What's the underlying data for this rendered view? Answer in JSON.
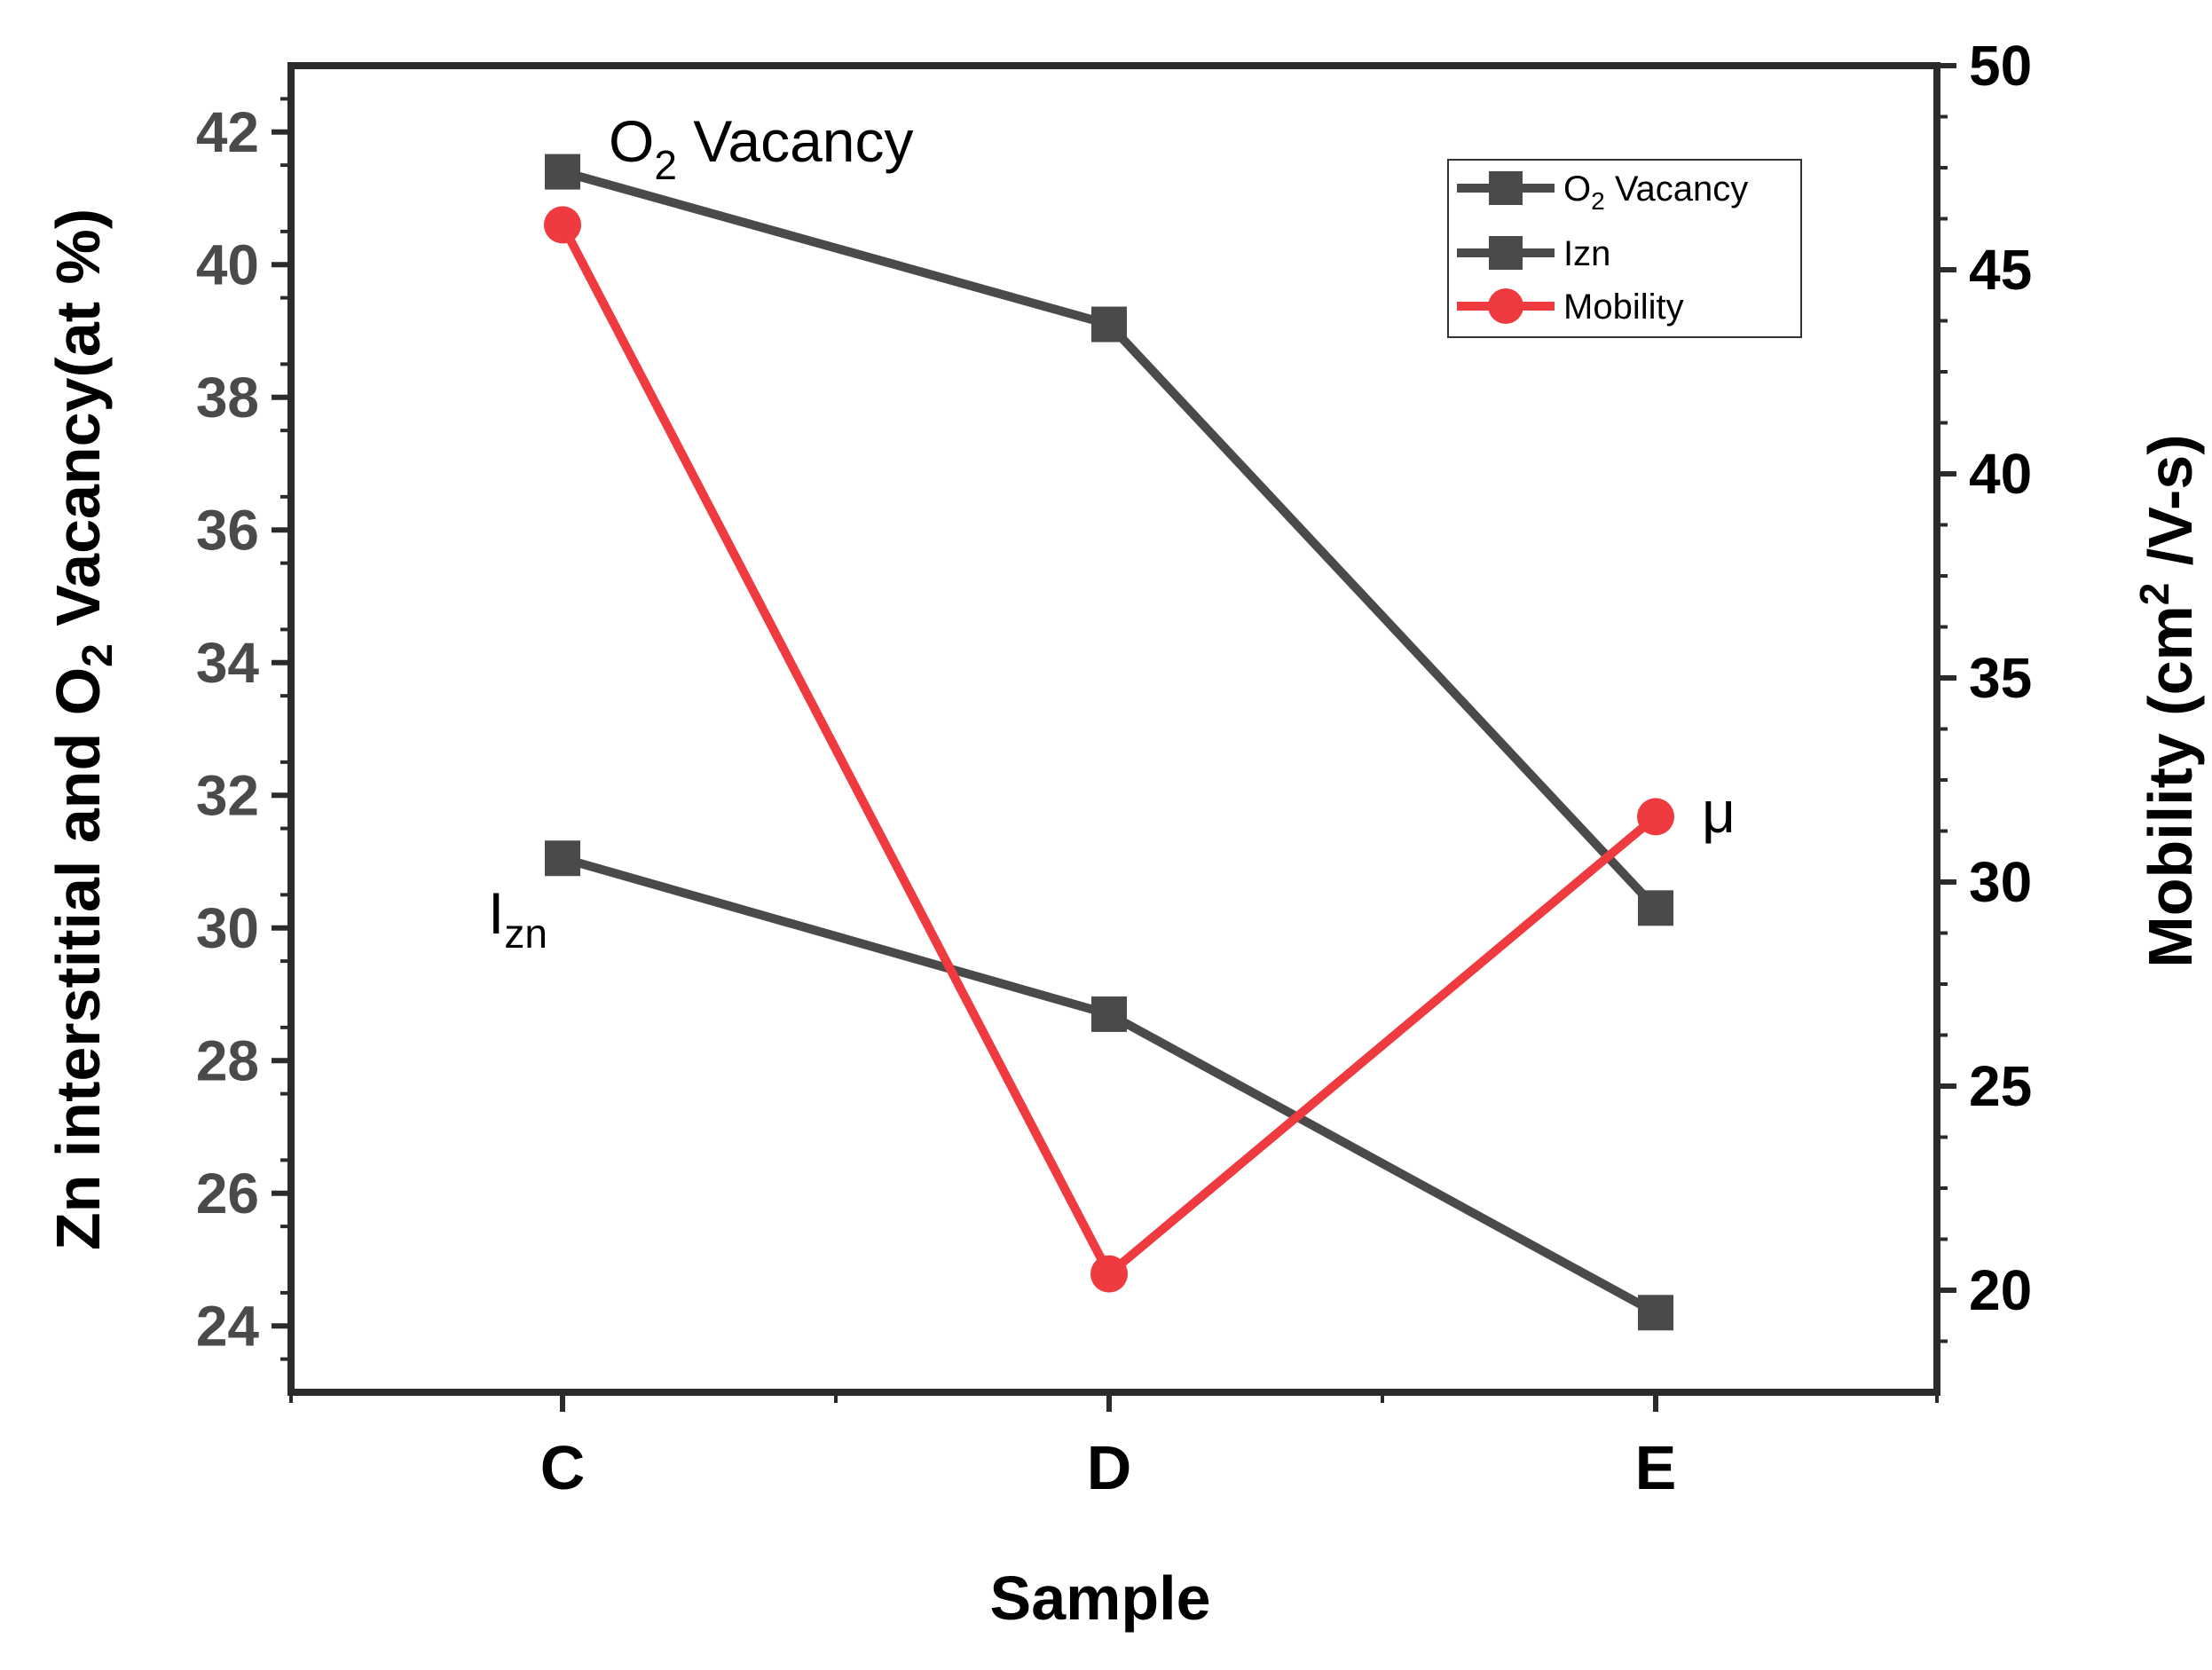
{
  "chart_data": {
    "type": "line",
    "categories": [
      "C",
      "D",
      "E"
    ],
    "xlabel": "Sample",
    "ylabel_left": {
      "pre": "Zn interstitial and O",
      "sub": "2",
      "post": " Vacancy(at %)"
    },
    "ylabel_right": {
      "pre": "Mobility (cm",
      "sup": "2",
      "post": " /V-s)"
    },
    "ylim_left": [
      23,
      43
    ],
    "yticks_left": [
      24,
      26,
      28,
      30,
      32,
      34,
      36,
      38,
      40,
      42
    ],
    "ylim_right": [
      17.5,
      50
    ],
    "yticks_right": [
      20,
      25,
      30,
      35,
      40,
      45,
      50
    ],
    "series": [
      {
        "name": "O2 Vacancy",
        "legend": {
          "pre": "O",
          "sub": "2",
          "post": " Vacancy"
        },
        "axis": "left",
        "marker": "square",
        "color": "#4a4a4a",
        "values": [
          41.4,
          39.1,
          30.3
        ]
      },
      {
        "name": "Izn",
        "legend": {
          "pre": "Izn",
          "sub": "",
          "post": ""
        },
        "axis": "left",
        "marker": "square",
        "color": "#4a4a4a",
        "values": [
          31.05,
          28.7,
          24.2
        ]
      },
      {
        "name": "Mobility",
        "legend": {
          "pre": "Mobility",
          "sub": "",
          "post": ""
        },
        "axis": "right",
        "marker": "circle",
        "color": "#ef3a3f",
        "values": [
          46.1,
          20.4,
          31.6
        ]
      }
    ],
    "annotations": [
      {
        "id": "o2",
        "pre": "O",
        "sub": "2",
        "post": " Vacancy"
      },
      {
        "id": "izn",
        "pre": "I",
        "sub": "zn",
        "post": ""
      },
      {
        "id": "mu",
        "pre": "μ",
        "sub": "",
        "post": ""
      }
    ],
    "legend_position": "top-right",
    "grid": false
  }
}
